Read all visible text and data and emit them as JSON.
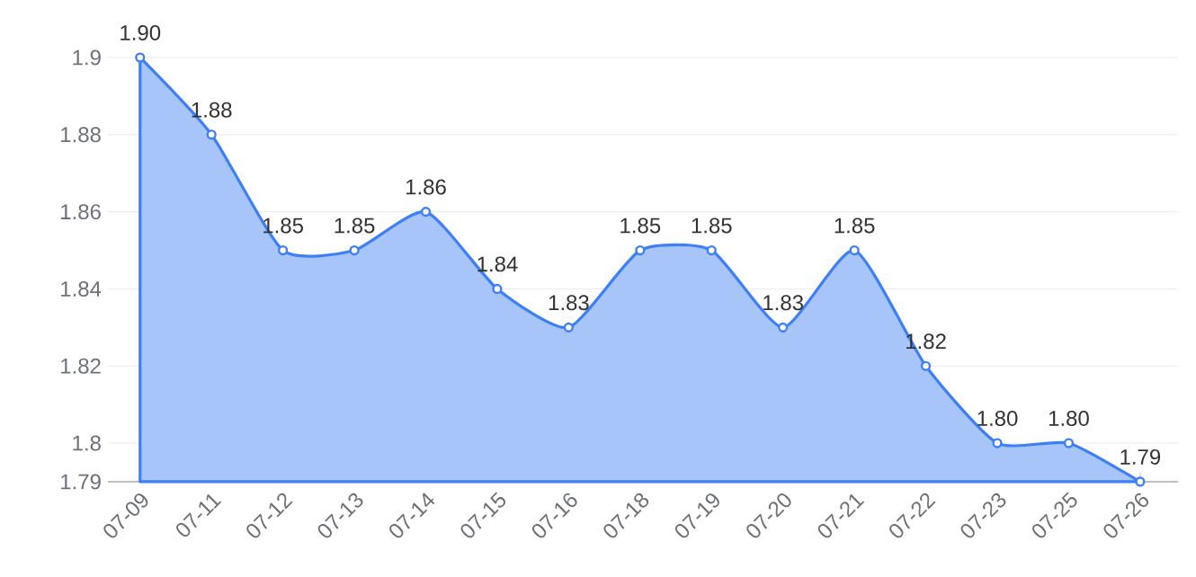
{
  "chart_data": {
    "type": "area",
    "categories": [
      "07-09",
      "07-11",
      "07-12",
      "07-13",
      "07-14",
      "07-15",
      "07-16",
      "07-18",
      "07-19",
      "07-20",
      "07-21",
      "07-22",
      "07-23",
      "07-25",
      "07-26"
    ],
    "values": [
      1.9,
      1.88,
      1.85,
      1.85,
      1.86,
      1.84,
      1.83,
      1.85,
      1.85,
      1.83,
      1.85,
      1.82,
      1.8,
      1.8,
      1.79
    ],
    "value_labels": [
      "1.90",
      "1.88",
      "1.85",
      "1.85",
      "1.86",
      "1.84",
      "1.83",
      "1.85",
      "1.85",
      "1.83",
      "1.85",
      "1.82",
      "1.80",
      "1.80",
      "1.79"
    ],
    "color": "#3d7ff5",
    "ylim": [
      1.79,
      1.9
    ],
    "yticks": [
      1.79,
      1.8,
      1.82,
      1.84,
      1.86,
      1.88,
      1.9
    ],
    "grid": "y",
    "marker": "circle"
  }
}
